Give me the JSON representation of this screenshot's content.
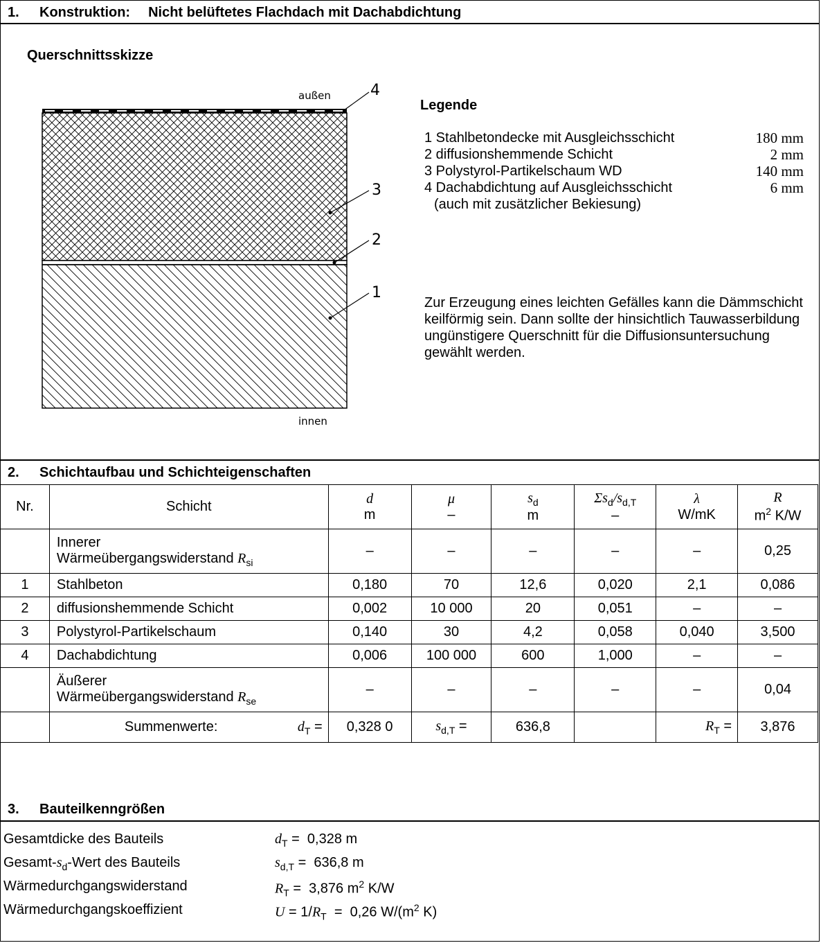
{
  "section1": {
    "number": "1.",
    "label": "Konstruktion:",
    "title": "Nicht belüftetes Flachdach mit Dachabdichtung",
    "subheading": "Querschnittsskizze",
    "sketch": {
      "top_label": "außen",
      "bottom_label": "innen",
      "markers": [
        "4",
        "3",
        "2",
        "1"
      ]
    },
    "legend_title": "Legende",
    "legend": [
      {
        "text": "1 Stahlbetondecke mit Ausgleichsschicht",
        "value": "180 mm"
      },
      {
        "text": "2 diffusionshemmende Schicht",
        "value": "2 mm"
      },
      {
        "text": "3 Polystyrol-Partikelschaum WD",
        "value": "140 mm"
      },
      {
        "text": "4 Dachabdichtung auf Ausgleichsschicht",
        "value": "6 mm"
      },
      {
        "text": "(auch mit zusätzlicher Bekiesung)",
        "value": ""
      }
    ],
    "note": "Zur Erzeugung eines leichten Gefälles kann die Dämmschicht keilförmig sein. Dann sollte der hinsichtlich Tauwasserbildung ungünstigere Querschnitt für die Diffusionsuntersuchung gewählt werden."
  },
  "section2": {
    "number": "2.",
    "title": "Schichtaufbau und Schichteigenschaften",
    "headers": {
      "nr": "Nr.",
      "schicht": "Schicht",
      "d": "d",
      "d_unit": "m",
      "mu": "μ",
      "mu_unit": "–",
      "sd": "s",
      "sd_sub": "d",
      "sd_unit": "m",
      "ratio_a": "Σs",
      "ratio_a_sub": "d",
      "ratio_b": "/s",
      "ratio_b_sub": "d,T",
      "ratio_unit": "–",
      "lambda": "λ",
      "lambda_unit": "W/mK",
      "r": "R",
      "r_unit_a": "m",
      "r_unit_sup": "2",
      "r_unit_b": " K/W"
    },
    "rows": [
      {
        "nr": "",
        "line1": "Innerer",
        "line2": "Wärmeübergangswiderstand",
        "sym": "R",
        "sub": "si",
        "d": "–",
        "mu": "–",
        "sd": "–",
        "ratio": "–",
        "lambda": "–",
        "r": "0,25"
      },
      {
        "nr": "1",
        "name": "Stahlbeton",
        "d": "0,180",
        "mu": "70",
        "sd": "12,6",
        "ratio": "0,020",
        "lambda": "2,1",
        "r": "0,086"
      },
      {
        "nr": "2",
        "name": "diffusionshemmende Schicht",
        "d": "0,002",
        "mu": "10 000",
        "sd": "20",
        "ratio": "0,051",
        "lambda": "–",
        "r": "–"
      },
      {
        "nr": "3",
        "name": "Polystyrol-Partikelschaum",
        "d": "0,140",
        "mu": "30",
        "sd": "4,2",
        "ratio": "0,058",
        "lambda": "0,040",
        "r": "3,500"
      },
      {
        "nr": "4",
        "name": "Dachabdichtung",
        "d": "0,006",
        "mu": "100 000",
        "sd": "600",
        "ratio": "1,000",
        "lambda": "–",
        "r": "–"
      },
      {
        "nr": "",
        "line1": "Äußerer",
        "line2": "Wärmeübergangswiderstand",
        "sym": "R",
        "sub": "se",
        "d": "–",
        "mu": "–",
        "sd": "–",
        "ratio": "–",
        "lambda": "–",
        "r": "0,04"
      }
    ],
    "sum": {
      "label": "Summenwerte:",
      "dT_sym": "d",
      "dT_sub": "T",
      "eq": " =",
      "dT": "0,328 0",
      "sdT_sym": "s",
      "sdT_sub": "d,T",
      "sdT": "636,8",
      "RT_sym": "R",
      "RT_sub": "T",
      "RT": "3,876"
    }
  },
  "section3": {
    "number": "3.",
    "title": "Bauteilkenngrößen",
    "rows": [
      {
        "label": "Gesamtdicke des Bauteils",
        "sym": "d",
        "sub": "T",
        "value": " =  0,328 m"
      },
      {
        "label_a": "Gesamt-",
        "label_sym": "s",
        "label_sub": "d",
        "label_b": "-Wert des Bauteils",
        "sym": "s",
        "sub": "d,T",
        "value": " =  636,8 m"
      },
      {
        "label": "Wärmedurchgangswiderstand",
        "sym": "R",
        "sub": "T",
        "value_a": " =  3,876 m",
        "value_sup": "2",
        "value_b": " K/W"
      },
      {
        "label": "Wärmedurchgangskoeffizient",
        "sym_u": "U",
        "eq1": " = 1/",
        "sym": "R",
        "sub": "T",
        "value_a": "  =  0,26 W/(m",
        "value_sup": "2",
        "value_b": " K)"
      }
    ]
  },
  "colors": {
    "border": "#000000",
    "background": "#ffffff",
    "text": "#000000"
  }
}
